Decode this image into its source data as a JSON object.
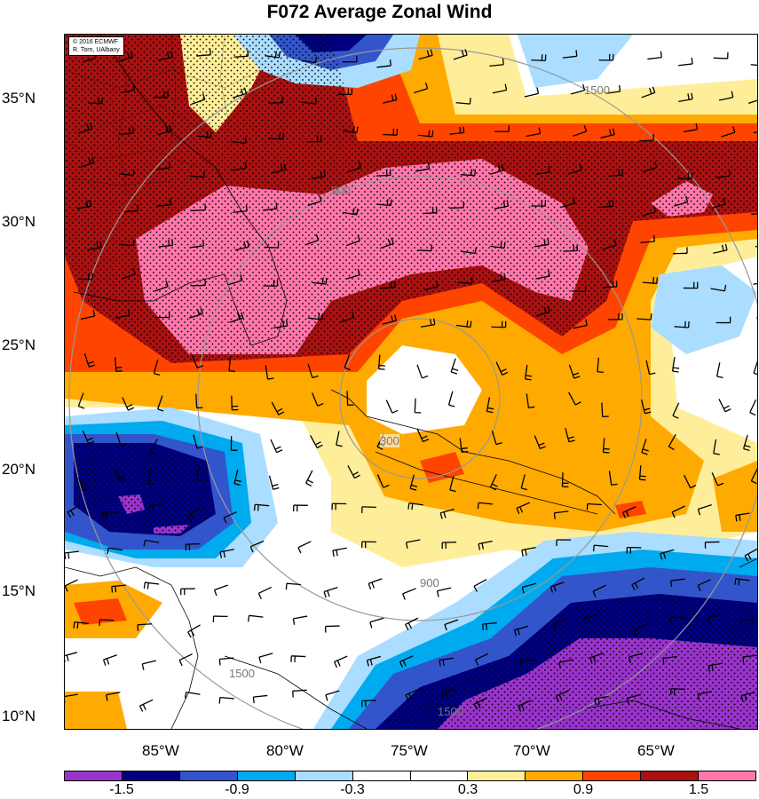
{
  "title": "F072 Average Zonal Wind",
  "credit": {
    "line1": "© 2016 ECMWF",
    "line2": "R. Torn, UAlbany"
  },
  "lat_labels": [
    "35°N",
    "30°N",
    "25°N",
    "20°N",
    "15°N",
    "10°N"
  ],
  "lon_labels": [
    "85°W",
    "80°W",
    "75°W",
    "70°W",
    "65°W"
  ],
  "contour_labels": [
    "300",
    "900",
    "1500"
  ],
  "colorbar": {
    "colors": [
      "#9933cc",
      "#000080",
      "#3355cc",
      "#00aaee",
      "#aaddff",
      "#ffffff",
      "#ffffff",
      "#ffee99",
      "#ffaa00",
      "#ff4400",
      "#aa1111",
      "#ff77aa"
    ],
    "labels": [
      "-1.5",
      "-0.9",
      "-0.3",
      "0.3",
      "0.9",
      "1.5"
    ]
  }
}
